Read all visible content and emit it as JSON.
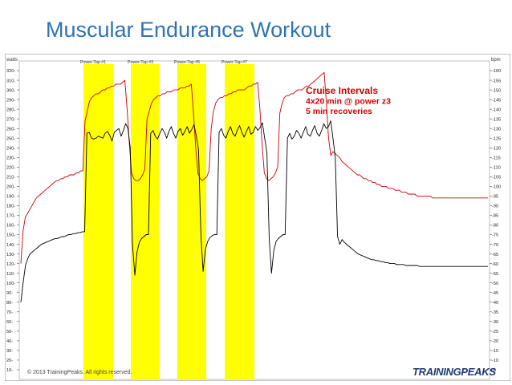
{
  "slide": {
    "title": "Muscular Endurance Workout",
    "copyright": "© 2013 TrainingPeaks. All rights reserved.",
    "logo_text": "TRAININGPEAKS"
  },
  "chart_data": {
    "type": "line",
    "title": "",
    "left_axis": {
      "unit_label": "watts",
      "min": 0,
      "max": 330,
      "ticks": [
        10,
        20,
        30,
        40,
        50,
        60,
        70,
        80,
        90,
        100,
        110,
        120,
        130,
        140,
        150,
        160,
        170,
        180,
        190,
        200,
        210,
        220,
        230,
        240,
        250,
        260,
        270,
        280,
        290,
        300,
        310,
        320
      ]
    },
    "right_axis": {
      "unit_label": "bpm",
      "min": 0,
      "max": 165,
      "ticks": [
        5,
        10,
        15,
        20,
        25,
        30,
        35,
        40,
        45,
        50,
        55,
        60,
        65,
        70,
        75,
        80,
        85,
        90,
        95,
        100,
        105,
        110,
        115,
        120,
        125,
        130,
        135,
        140,
        145,
        150,
        155,
        160
      ]
    },
    "interval_labels": [
      "Power-Tap #1",
      "Power-Tap #3",
      "Power-Tap #5",
      "Power-Tap #7"
    ],
    "interval_color": "#FFFF00",
    "annotation": [
      "Cruise Intervals",
      "4x20 min @ power z3",
      "5 min recoveries"
    ],
    "annotation_color": "#D00000",
    "series": [
      {
        "axis": "right",
        "color": "#CC0000",
        "values": [
          60,
          77,
          84,
          86,
          88,
          90,
          92,
          94,
          95,
          96,
          97,
          98,
          99,
          100,
          101,
          102,
          103,
          103,
          104,
          104,
          105,
          105,
          106,
          106,
          106,
          107,
          107,
          108,
          108,
          134,
          139,
          144,
          146,
          147,
          148,
          148,
          149,
          150,
          150,
          151,
          151,
          152,
          152,
          153,
          153,
          153,
          154,
          155,
          140,
          122,
          107,
          104,
          103,
          103,
          104,
          106,
          109,
          135,
          139,
          143,
          145,
          146,
          147,
          147,
          148,
          148,
          149,
          149,
          149,
          150,
          150,
          150,
          151,
          151,
          151,
          152,
          152,
          153,
          138,
          120,
          107,
          104,
          103,
          104,
          105,
          108,
          130,
          139,
          143,
          145,
          146,
          146,
          147,
          147,
          148,
          148,
          149,
          149,
          150,
          150,
          150,
          150,
          151,
          152,
          152,
          153,
          153,
          154,
          140,
          121,
          107,
          104,
          103,
          104,
          105,
          107,
          110,
          138,
          143,
          146,
          147,
          147,
          148,
          148,
          149,
          150,
          150,
          150,
          151,
          152,
          152,
          153,
          154,
          155,
          156,
          157,
          158,
          159,
          144,
          125,
          116,
          118,
          117,
          116,
          115,
          113,
          112,
          111,
          110,
          109,
          108,
          107,
          106,
          106,
          105,
          104,
          104,
          103,
          103,
          102,
          102,
          101,
          101,
          100,
          100,
          100,
          99,
          99,
          99,
          98,
          98,
          98,
          97,
          97,
          97,
          96,
          96,
          96,
          96,
          95,
          95,
          95,
          95,
          95,
          95,
          95,
          94,
          94,
          94,
          94,
          94,
          94,
          94,
          94,
          94,
          94,
          94,
          94,
          94,
          94,
          94,
          94,
          94,
          94,
          94,
          94,
          94,
          94,
          94,
          94,
          94,
          94
        ]
      },
      {
        "axis": "left",
        "color": "#000000",
        "values": [
          80,
          100,
          118,
          125,
          130,
          132,
          134,
          136,
          138,
          140,
          141,
          142,
          143,
          144,
          145,
          146,
          146,
          147,
          148,
          148,
          149,
          150,
          150,
          151,
          151,
          152,
          152,
          153,
          153,
          255,
          256,
          250,
          249,
          250,
          252,
          251,
          250,
          255,
          257,
          253,
          247,
          256,
          258,
          260,
          252,
          258,
          265,
          260,
          240,
          140,
          108,
          132,
          142,
          146,
          148,
          150,
          150,
          255,
          258,
          252,
          249,
          255,
          260,
          256,
          250,
          257,
          262,
          255,
          250,
          257,
          260,
          253,
          257,
          262,
          255,
          259,
          264,
          252,
          238,
          150,
          112,
          135,
          143,
          147,
          149,
          150,
          150,
          256,
          260,
          253,
          250,
          257,
          262,
          255,
          252,
          258,
          263,
          256,
          251,
          257,
          262,
          254,
          256,
          262,
          258,
          261,
          266,
          250,
          235,
          145,
          110,
          133,
          143,
          146,
          148,
          150,
          150,
          250,
          255,
          249,
          252,
          258,
          255,
          250,
          256,
          262,
          254,
          252,
          258,
          263,
          255,
          252,
          258,
          265,
          260,
          262,
          268,
          250,
          230,
          148,
          140,
          145,
          142,
          140,
          138,
          136,
          134,
          132,
          130,
          129,
          128,
          127,
          126,
          125,
          124,
          124,
          123,
          123,
          122,
          122,
          121,
          121,
          120,
          120,
          120,
          119,
          119,
          119,
          119,
          118,
          118,
          118,
          118,
          118,
          118,
          117,
          117,
          117,
          117,
          117,
          117,
          117,
          117,
          117,
          117,
          117,
          117,
          117,
          117,
          117,
          117,
          117,
          117,
          117,
          117,
          117,
          117,
          117,
          117,
          117,
          117,
          117,
          117,
          117,
          117,
          117
        ]
      }
    ]
  }
}
